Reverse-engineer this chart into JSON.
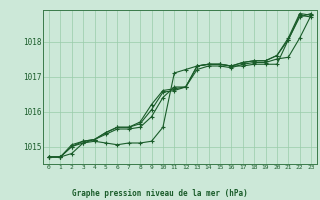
{
  "title": "Graphe pression niveau de la mer (hPa)",
  "bg_color": "#cce8d8",
  "grid_color": "#99ccaa",
  "line_color": "#1a5c2a",
  "xlim": [
    -0.5,
    23.5
  ],
  "ylim": [
    1014.5,
    1018.9
  ],
  "yticks": [
    1015,
    1016,
    1017,
    1018
  ],
  "xticks": [
    0,
    1,
    2,
    3,
    4,
    5,
    6,
    7,
    8,
    9,
    10,
    11,
    12,
    13,
    14,
    15,
    16,
    17,
    18,
    19,
    20,
    21,
    22,
    23
  ],
  "series1": [
    1014.7,
    1014.7,
    1014.8,
    1015.1,
    1015.15,
    1015.1,
    1015.05,
    1015.1,
    1015.1,
    1015.15,
    1015.55,
    1017.1,
    1017.2,
    1017.3,
    1017.35,
    1017.35,
    1017.3,
    1017.3,
    1017.35,
    1017.35,
    1017.35,
    1018.05,
    1018.7,
    1018.8
  ],
  "series2": [
    1014.7,
    1014.7,
    1015.0,
    1015.1,
    1015.2,
    1015.35,
    1015.5,
    1015.5,
    1015.55,
    1015.85,
    1016.4,
    1016.7,
    1016.7,
    1017.2,
    1017.3,
    1017.3,
    1017.25,
    1017.35,
    1017.4,
    1017.4,
    1017.5,
    1017.55,
    1018.1,
    1018.75
  ],
  "series3": [
    1014.7,
    1014.7,
    1015.0,
    1015.15,
    1015.2,
    1015.4,
    1015.55,
    1015.55,
    1015.7,
    1016.2,
    1016.6,
    1016.65,
    1016.7,
    1017.3,
    1017.35,
    1017.35,
    1017.3,
    1017.4,
    1017.45,
    1017.45,
    1017.6,
    1018.1,
    1018.8,
    1018.75
  ],
  "series4": [
    1014.7,
    1014.7,
    1015.05,
    1015.15,
    1015.2,
    1015.4,
    1015.55,
    1015.55,
    1015.65,
    1016.05,
    1016.55,
    1016.6,
    1016.7,
    1017.3,
    1017.35,
    1017.35,
    1017.3,
    1017.4,
    1017.45,
    1017.45,
    1017.6,
    1018.05,
    1018.75,
    1018.7
  ]
}
